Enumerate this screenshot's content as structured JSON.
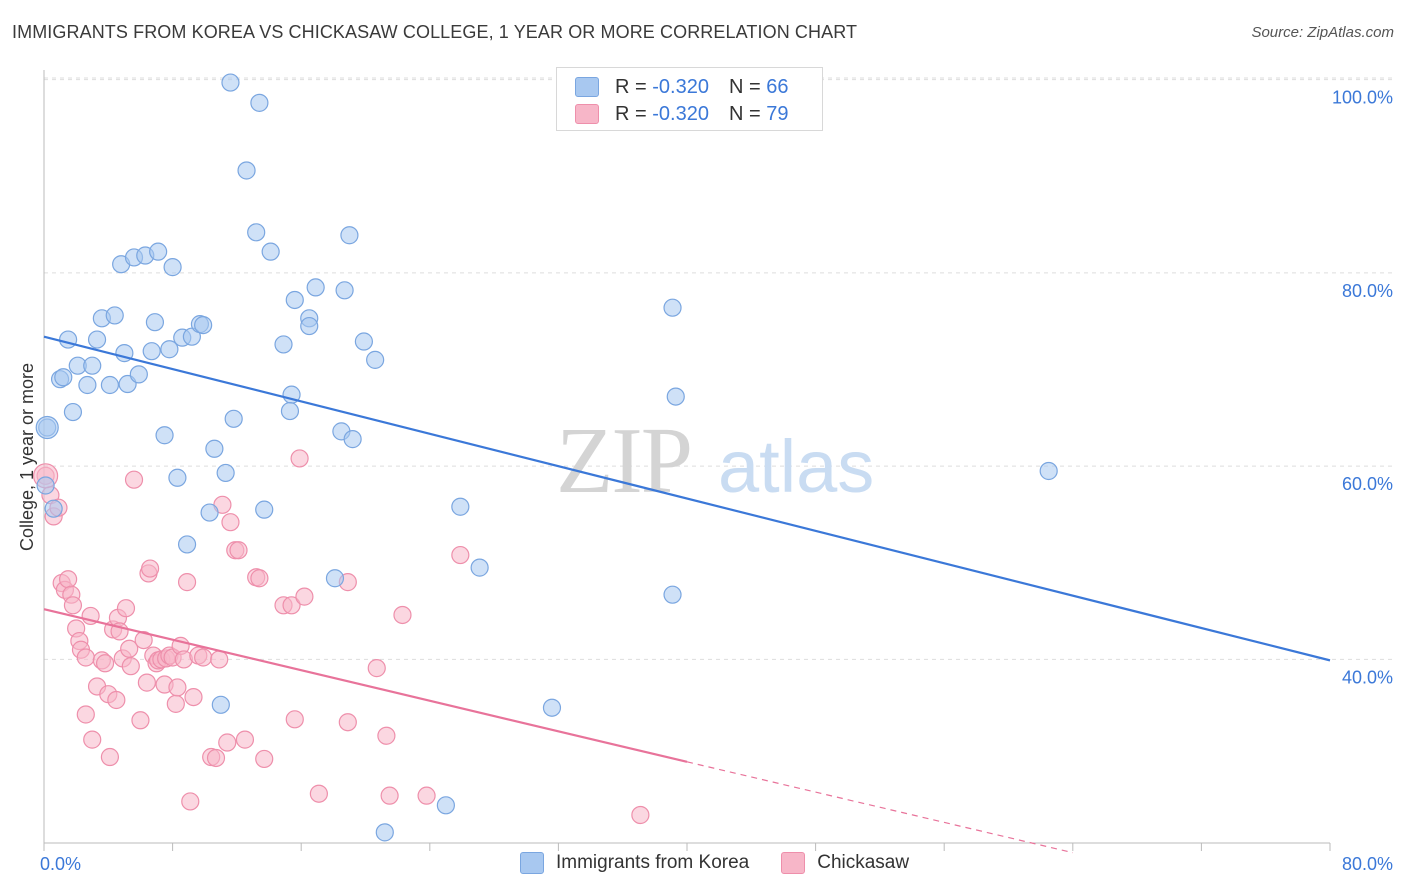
{
  "header": {
    "title": "IMMIGRANTS FROM KOREA VS CHICKASAW COLLEGE, 1 YEAR OR MORE CORRELATION CHART",
    "source": "Source: ZipAtlas.com"
  },
  "watermark": {
    "zip": "ZIP",
    "atlas": "atlas"
  },
  "legend_top": {
    "rows": [
      {
        "r_label": "R = ",
        "r_value": "-0.320",
        "n_label": "N = ",
        "n_value": "66"
      },
      {
        "r_label": "R = ",
        "r_value": "-0.320",
        "n_label": "N = ",
        "n_value": "79"
      }
    ]
  },
  "legend_bottom": [
    "Immigrants from Korea",
    "Chickasaw"
  ],
  "colors": {
    "korea_fill": "#a8c8f0",
    "korea_stroke": "#7aa6e0",
    "korea_line": "#3b78d8",
    "chickasaw_fill": "#f7b6c8",
    "chickasaw_stroke": "#ee8fab",
    "chickasaw_line": "#e8739a",
    "tick_label": "#3b78d8",
    "grid": "#dddddd"
  },
  "chart_data": {
    "type": "scatter",
    "title": "IMMIGRANTS FROM KOREA VS CHICKASAW COLLEGE, 1 YEAR OR MORE CORRELATION CHART",
    "xlabel": "",
    "ylabel": "College, 1 year or more",
    "xlim": [
      0,
      80
    ],
    "ylim": [
      21,
      101
    ],
    "x_tick_labels": [
      {
        "x": 0,
        "label": "0.0%"
      },
      {
        "x": 80,
        "label": "80.0%"
      }
    ],
    "y_tick_labels": [
      {
        "y": 100,
        "label": "100.0%"
      },
      {
        "y": 80,
        "label": "80.0%"
      },
      {
        "y": 60,
        "label": "60.0%"
      },
      {
        "y": 40,
        "label": "40.0%"
      }
    ],
    "grid": true,
    "series": [
      {
        "name": "Immigrants from Korea",
        "r": -0.32,
        "n": 66,
        "trend": {
          "x": [
            0,
            80
          ],
          "y": [
            73.4,
            39.9
          ]
        },
        "points": [
          [
            0.2,
            64.0
          ],
          [
            0.6,
            55.6
          ],
          [
            1.0,
            69.0
          ],
          [
            1.2,
            69.2
          ],
          [
            1.5,
            73.1
          ],
          [
            1.8,
            65.6
          ],
          [
            2.1,
            70.4
          ],
          [
            2.7,
            68.4
          ],
          [
            3.0,
            70.4
          ],
          [
            3.3,
            73.1
          ],
          [
            3.6,
            75.3
          ],
          [
            4.1,
            68.4
          ],
          [
            4.4,
            75.6
          ],
          [
            4.8,
            80.9
          ],
          [
            5.0,
            71.7
          ],
          [
            5.2,
            68.5
          ],
          [
            5.6,
            81.6
          ],
          [
            5.9,
            69.5
          ],
          [
            6.3,
            81.8
          ],
          [
            6.7,
            71.9
          ],
          [
            6.9,
            74.9
          ],
          [
            7.1,
            82.2
          ],
          [
            7.5,
            63.2
          ],
          [
            7.8,
            72.1
          ],
          [
            8.0,
            80.6
          ],
          [
            8.3,
            58.8
          ],
          [
            8.6,
            73.3
          ],
          [
            8.9,
            51.9
          ],
          [
            9.2,
            73.4
          ],
          [
            9.7,
            74.7
          ],
          [
            9.9,
            74.6
          ],
          [
            10.3,
            55.2
          ],
          [
            10.6,
            61.8
          ],
          [
            11.0,
            35.3
          ],
          [
            11.3,
            59.3
          ],
          [
            11.6,
            99.7
          ],
          [
            11.8,
            64.9
          ],
          [
            12.6,
            90.6
          ],
          [
            13.2,
            84.2
          ],
          [
            13.4,
            97.6
          ],
          [
            13.7,
            55.5
          ],
          [
            14.1,
            82.2
          ],
          [
            14.9,
            72.6
          ],
          [
            15.4,
            67.4
          ],
          [
            15.3,
            65.7
          ],
          [
            15.6,
            77.2
          ],
          [
            16.5,
            75.3
          ],
          [
            16.5,
            74.5
          ],
          [
            16.9,
            78.5
          ],
          [
            18.1,
            48.4
          ],
          [
            18.5,
            63.6
          ],
          [
            18.7,
            78.2
          ],
          [
            19.0,
            83.9
          ],
          [
            19.2,
            62.8
          ],
          [
            19.9,
            72.9
          ],
          [
            20.6,
            71.0
          ],
          [
            21.2,
            22.1
          ],
          [
            25.0,
            24.9
          ],
          [
            25.9,
            55.8
          ],
          [
            27.1,
            49.5
          ],
          [
            31.6,
            35.0
          ],
          [
            39.1,
            76.4
          ],
          [
            39.1,
            46.7
          ],
          [
            39.3,
            67.2
          ],
          [
            62.5,
            59.5
          ],
          [
            0.1,
            58.0
          ]
        ]
      },
      {
        "name": "Chickasaw",
        "r": -0.32,
        "n": 79,
        "trend": {
          "x": [
            0,
            40
          ],
          "y": [
            45.2,
            29.4
          ]
        },
        "trend_dashed": {
          "x": [
            40,
            64
          ],
          "y": [
            29.4,
            20.0
          ]
        },
        "points": [
          [
            0.1,
            59.0
          ],
          [
            0.4,
            57.0
          ],
          [
            0.6,
            54.8
          ],
          [
            0.9,
            55.7
          ],
          [
            1.1,
            47.9
          ],
          [
            1.3,
            47.2
          ],
          [
            1.5,
            48.3
          ],
          [
            1.7,
            46.7
          ],
          [
            1.8,
            45.6
          ],
          [
            2.0,
            43.2
          ],
          [
            2.2,
            41.9
          ],
          [
            2.3,
            41.0
          ],
          [
            2.6,
            40.2
          ],
          [
            2.6,
            34.3
          ],
          [
            2.9,
            44.5
          ],
          [
            3.0,
            31.7
          ],
          [
            3.3,
            37.2
          ],
          [
            3.6,
            39.9
          ],
          [
            3.8,
            39.6
          ],
          [
            4.0,
            36.4
          ],
          [
            4.1,
            29.9
          ],
          [
            4.3,
            43.1
          ],
          [
            4.5,
            35.8
          ],
          [
            4.6,
            44.3
          ],
          [
            4.7,
            42.9
          ],
          [
            4.9,
            40.1
          ],
          [
            5.1,
            45.3
          ],
          [
            5.3,
            41.1
          ],
          [
            5.4,
            39.3
          ],
          [
            5.6,
            58.6
          ],
          [
            6.0,
            33.7
          ],
          [
            6.2,
            42.0
          ],
          [
            6.4,
            37.6
          ],
          [
            6.5,
            48.9
          ],
          [
            6.6,
            49.4
          ],
          [
            6.8,
            40.4
          ],
          [
            7.0,
            39.6
          ],
          [
            7.1,
            39.9
          ],
          [
            7.3,
            40.0
          ],
          [
            7.5,
            37.4
          ],
          [
            7.6,
            40.1
          ],
          [
            7.8,
            40.4
          ],
          [
            8.0,
            40.2
          ],
          [
            8.2,
            35.4
          ],
          [
            8.3,
            37.1
          ],
          [
            8.5,
            41.4
          ],
          [
            8.7,
            40.0
          ],
          [
            8.9,
            48.0
          ],
          [
            9.1,
            25.3
          ],
          [
            9.3,
            36.1
          ],
          [
            9.6,
            40.4
          ],
          [
            9.9,
            40.2
          ],
          [
            10.4,
            29.9
          ],
          [
            10.7,
            29.8
          ],
          [
            10.9,
            40.0
          ],
          [
            11.1,
            56.0
          ],
          [
            11.4,
            31.4
          ],
          [
            11.6,
            54.2
          ],
          [
            11.9,
            51.3
          ],
          [
            12.1,
            51.3
          ],
          [
            12.5,
            31.7
          ],
          [
            13.2,
            48.5
          ],
          [
            13.4,
            48.4
          ],
          [
            13.7,
            29.7
          ],
          [
            14.9,
            45.6
          ],
          [
            15.4,
            45.6
          ],
          [
            15.6,
            33.8
          ],
          [
            15.9,
            60.8
          ],
          [
            16.2,
            46.5
          ],
          [
            17.1,
            26.1
          ],
          [
            18.9,
            48.0
          ],
          [
            18.9,
            33.5
          ],
          [
            20.7,
            39.1
          ],
          [
            21.3,
            32.1
          ],
          [
            21.5,
            25.9
          ],
          [
            22.3,
            44.6
          ],
          [
            23.8,
            25.9
          ],
          [
            25.9,
            50.8
          ],
          [
            37.1,
            23.9
          ]
        ]
      }
    ]
  }
}
